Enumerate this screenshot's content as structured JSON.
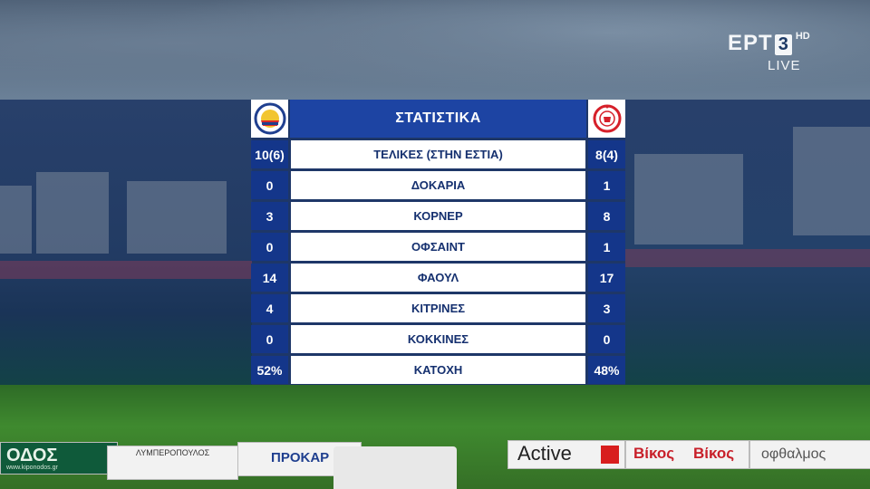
{
  "broadcaster": {
    "brand": "ΕΡΤ",
    "channel": "3",
    "quality": "HD",
    "status": "LIVE"
  },
  "stats": {
    "title": "ΣΤΑΤΙΣΤΙΚΑ",
    "home_crest": "home-team-crest",
    "away_crest": "away-team-crest",
    "rows": [
      {
        "label": "ΤΕΛΙΚΕΣ (ΣΤΗΝ ΕΣΤΙΑ)",
        "home": "10(6)",
        "away": "8(4)"
      },
      {
        "label": "ΔΟΚΑΡΙΑ",
        "home": "0",
        "away": "1"
      },
      {
        "label": "ΚΟΡΝΕΡ",
        "home": "3",
        "away": "8"
      },
      {
        "label": "ΟΦΣΑΙΝΤ",
        "home": "0",
        "away": "1"
      },
      {
        "label": "ΦΑΟΥΛ",
        "home": "14",
        "away": "17"
      },
      {
        "label": "ΚΙΤΡΙΝΕΣ",
        "home": "4",
        "away": "3"
      },
      {
        "label": "ΚΟΚΚΙΝΕΣ",
        "home": "0",
        "away": "0"
      },
      {
        "label": "ΚΑΤΟΧΗ",
        "home": "52%",
        "away": "48%"
      }
    ]
  },
  "ads": {
    "board1": "ΟΔΟΣ",
    "board1_url": "www.kiponodos.gr",
    "board2": "ΛΥΜΠΕΡΟΠΟΥΛΟΣ",
    "board3": "ΠΡΟΚΑΡ",
    "board4": "Active",
    "board5": "Βίκος",
    "board6": "Βίκος",
    "board7": "οφθαλμος"
  },
  "colors": {
    "title_bar": "#1d44a3",
    "number_cell": "#14368a",
    "label_text": "#15306f"
  }
}
